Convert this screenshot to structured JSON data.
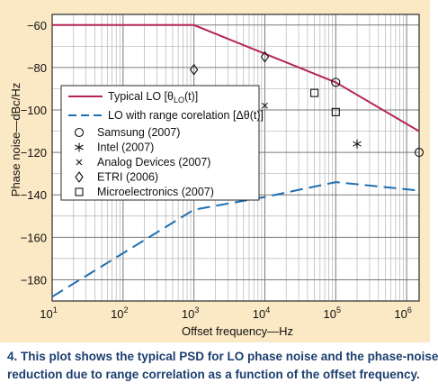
{
  "chart_data": {
    "type": "line",
    "xscale": "log",
    "xlim": [
      10,
      1500000
    ],
    "ylim": [
      -190,
      -55
    ],
    "xlabel": "Offset frequency—Hz",
    "ylabel": "Phase noise—dBc/Hz",
    "x_ticks": [
      {
        "value": 10,
        "base": "10",
        "exp": "1"
      },
      {
        "value": 100,
        "base": "10",
        "exp": "2"
      },
      {
        "value": 1000,
        "base": "10",
        "exp": "3"
      },
      {
        "value": 10000,
        "base": "10",
        "exp": "4"
      },
      {
        "value": 100000,
        "base": "10",
        "exp": "5"
      },
      {
        "value": 1000000,
        "base": "10",
        "exp": "6"
      }
    ],
    "y_ticks": [
      {
        "value": -60,
        "label": "−60"
      },
      {
        "value": -80,
        "label": "−80"
      },
      {
        "value": -100,
        "label": "−100"
      },
      {
        "value": -120,
        "label": "−120"
      },
      {
        "value": -140,
        "label": "−140"
      },
      {
        "value": -160,
        "label": "−160"
      },
      {
        "value": -180,
        "label": "−180"
      }
    ],
    "lines": [
      {
        "label_text": "Typical LO [",
        "label_math": "θ",
        "label_sub": "LO",
        "label_tail": "(t)]",
        "color": "#b5245a",
        "dash": "solid",
        "points": [
          [
            10,
            -60
          ],
          [
            1000,
            -60
          ],
          [
            100000,
            -87
          ],
          [
            1500000,
            -110
          ]
        ]
      },
      {
        "label_text": "LO with range corelation [Δθ(t)]",
        "color": "#1f6fb0",
        "dash": "dashed",
        "points": [
          [
            10,
            -188
          ],
          [
            1000,
            -147
          ],
          [
            10000,
            -141
          ],
          [
            100000,
            -134
          ],
          [
            1500000,
            -138
          ]
        ]
      }
    ],
    "scatter": [
      {
        "name": "Samsung (2007)",
        "marker": "circle",
        "points": [
          [
            100000,
            -87
          ],
          [
            1500000,
            -120
          ]
        ]
      },
      {
        "name": "Intel (2007)",
        "marker": "asterisk",
        "points": [
          [
            200000,
            -116
          ]
        ]
      },
      {
        "name": "Analog Devices (2007)",
        "marker": "x",
        "points": [
          [
            10000,
            -98
          ]
        ]
      },
      {
        "name": "ETRI (2006)",
        "marker": "diamond",
        "points": [
          [
            1000,
            -81
          ],
          [
            10000,
            -75
          ]
        ]
      },
      {
        "name": "Microelectronics (2007)",
        "marker": "square",
        "points": [
          [
            50000,
            -92
          ],
          [
            100000,
            -101
          ]
        ]
      }
    ]
  },
  "caption": {
    "line1": "4. This plot shows the typical PSD for LO phase noise and the phase-noise",
    "line2": "reduction due to range correlation as a function of the offset frequency."
  }
}
